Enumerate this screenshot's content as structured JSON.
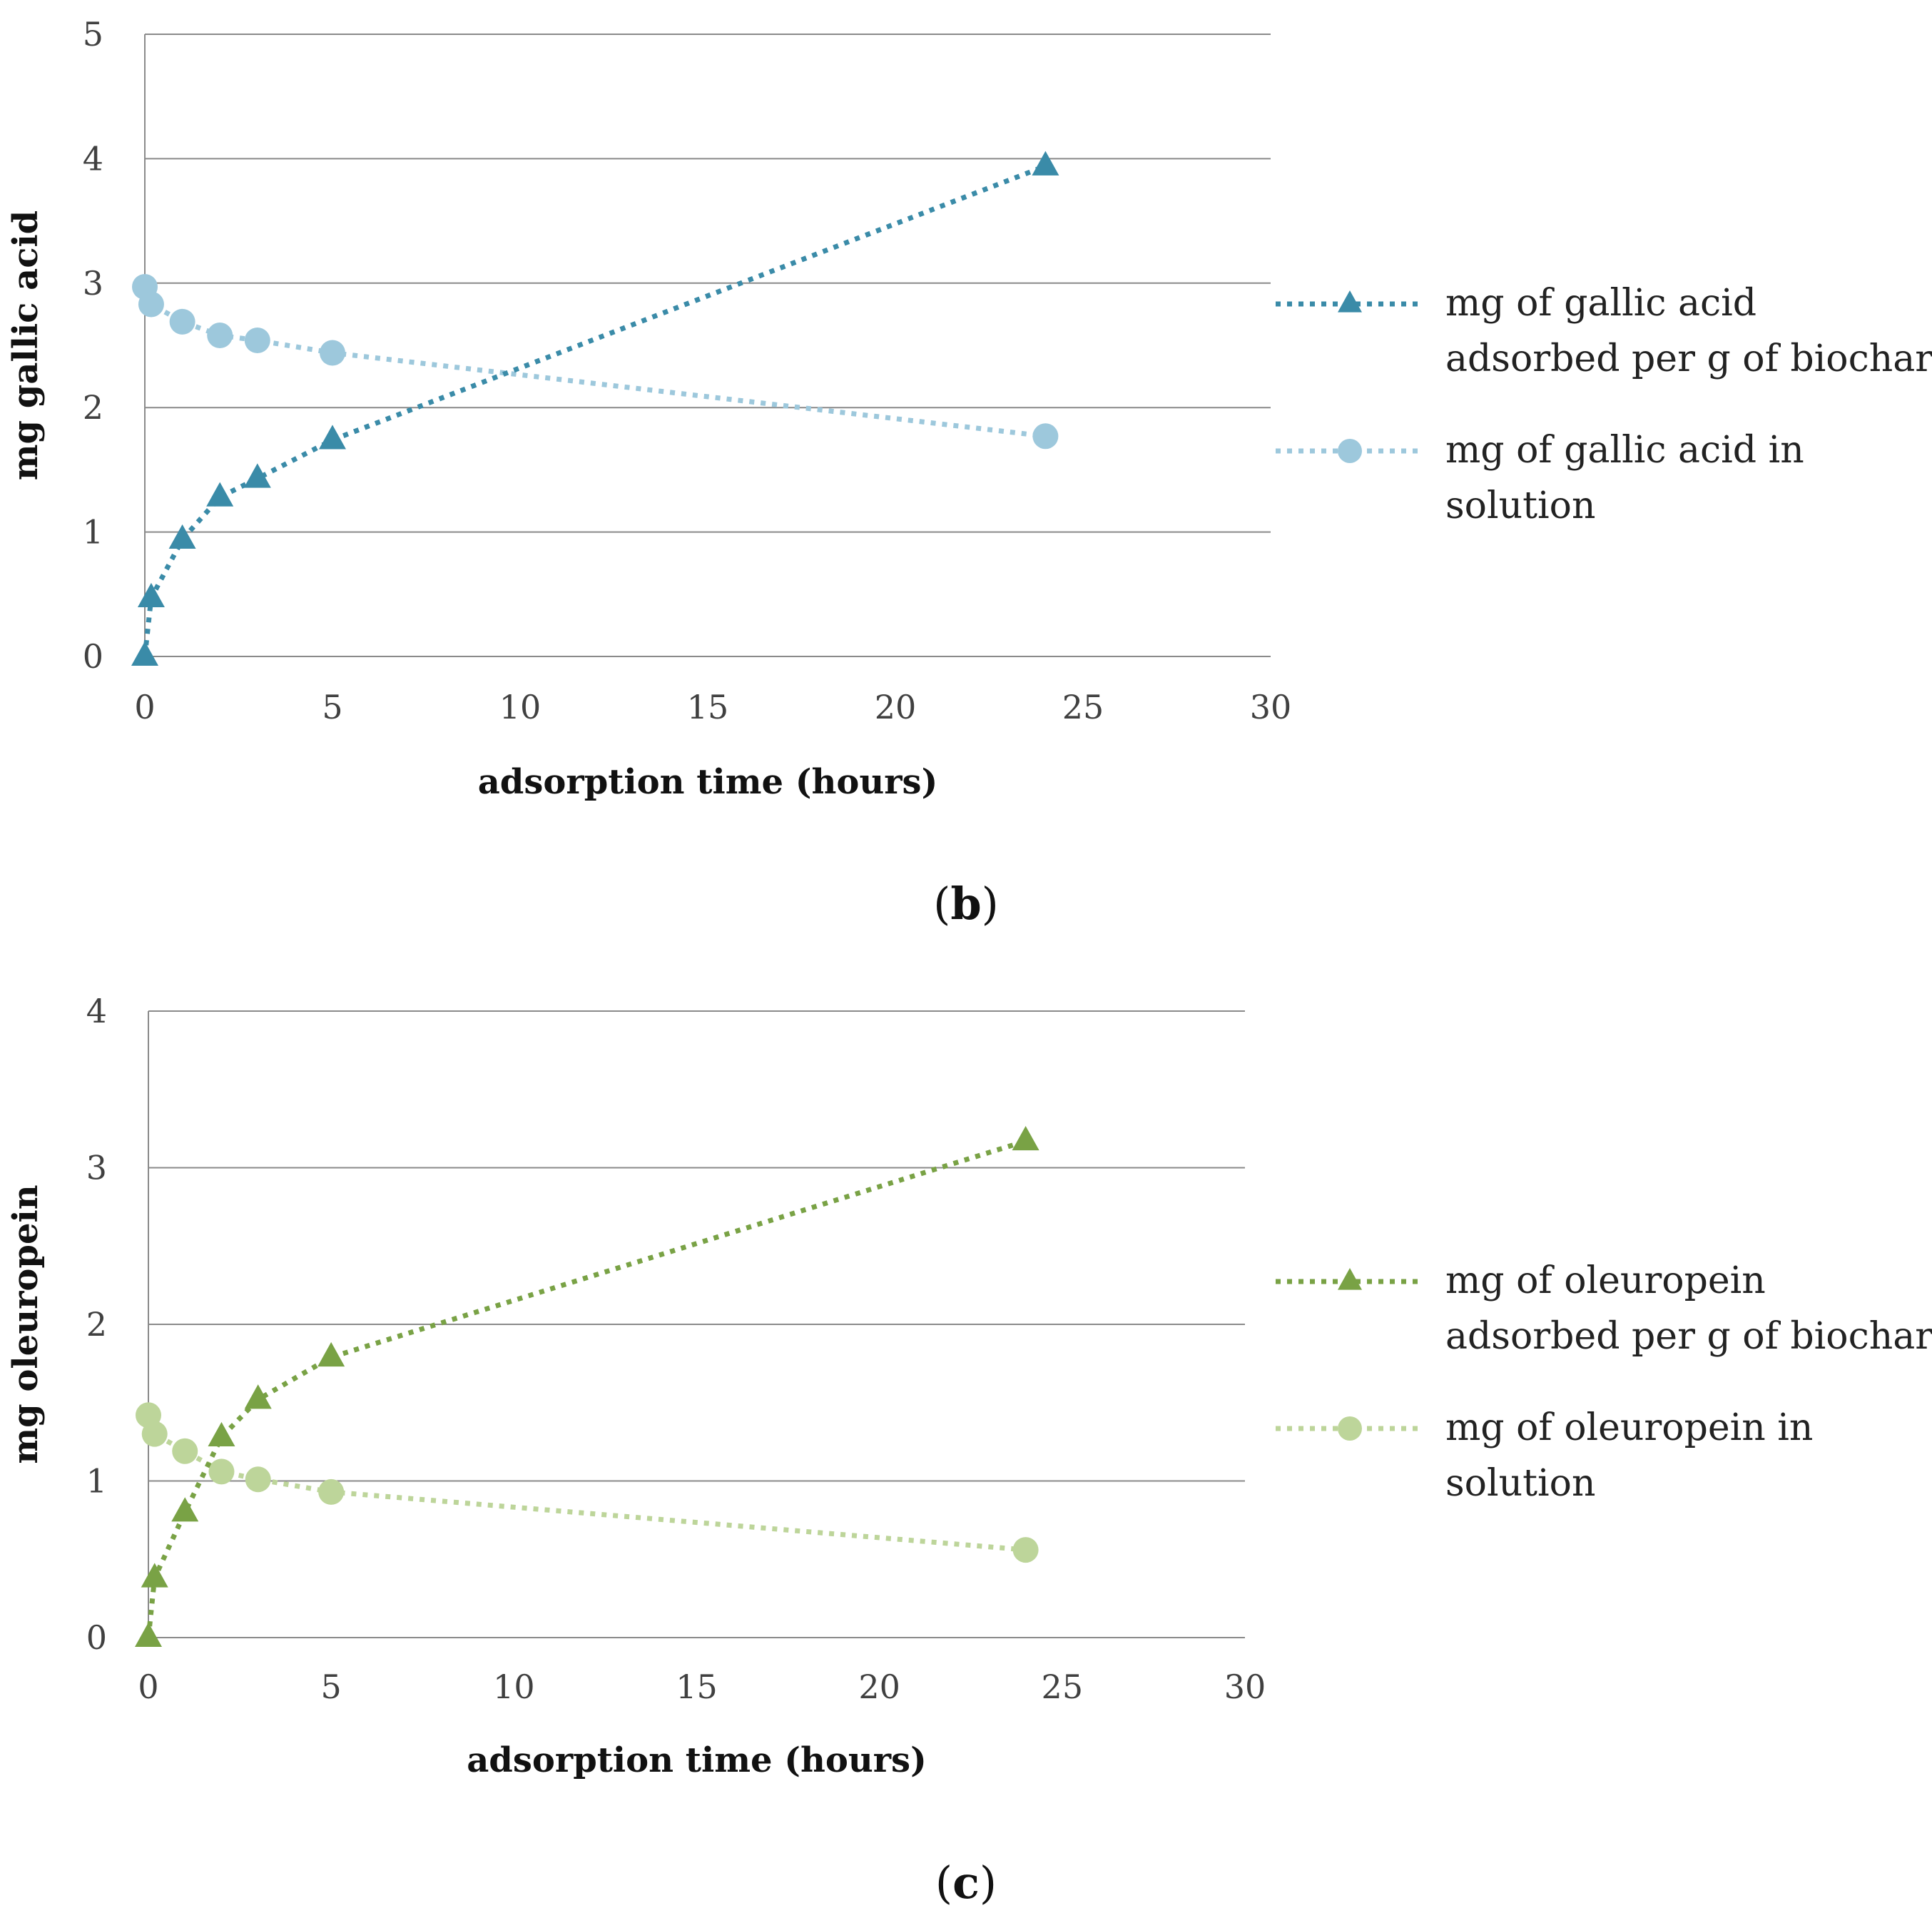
{
  "chart_data": [
    {
      "type": "line",
      "panel_label": "b",
      "xlabel": "adsorption time (hours)",
      "ylabel": "mg gallic acid",
      "xlim": [
        0,
        30
      ],
      "ylim": [
        0,
        5
      ],
      "xticks": [
        0,
        5,
        10,
        15,
        20,
        25,
        30
      ],
      "yticks": [
        0,
        1,
        2,
        3,
        4,
        5
      ],
      "grid": "horizontal",
      "legend_position": "right",
      "series": [
        {
          "name_line1": "mg of gallic acid",
          "name_line2": "adsorbed per g of biochar",
          "marker": "triangle",
          "color": "#3a8ba8",
          "x": [
            0,
            0.17,
            1,
            2,
            3,
            5,
            24
          ],
          "y": [
            0,
            0.47,
            0.94,
            1.28,
            1.43,
            1.74,
            3.94
          ]
        },
        {
          "name_line1": "mg of gallic acid in",
          "name_line2": "solution",
          "marker": "circle",
          "color": "#9dc8dc",
          "x": [
            0,
            0.17,
            1,
            2,
            3,
            5,
            24
          ],
          "y": [
            2.97,
            2.83,
            2.69,
            2.58,
            2.54,
            2.44,
            1.77
          ]
        }
      ]
    },
    {
      "type": "line",
      "panel_label": "c",
      "xlabel": "adsorption time (hours)",
      "ylabel": "mg oleuropein",
      "xlim": [
        0,
        30
      ],
      "ylim": [
        0,
        4
      ],
      "xticks": [
        0,
        5,
        10,
        15,
        20,
        25,
        30
      ],
      "yticks": [
        0,
        1,
        2,
        3,
        4
      ],
      "grid": "horizontal",
      "legend_position": "right",
      "series": [
        {
          "name_line1": "mg of oleuropein",
          "name_line2": "adsorbed per g of biochar",
          "marker": "triangle",
          "color": "#79a245",
          "x": [
            0,
            0.17,
            1,
            2,
            3,
            5,
            24
          ],
          "y": [
            0,
            0.38,
            0.8,
            1.28,
            1.52,
            1.79,
            3.17
          ]
        },
        {
          "name_line1": "mg of oleuropein in",
          "name_line2": "solution",
          "marker": "circle",
          "color": "#bdd59a",
          "x": [
            0,
            0.17,
            1,
            2,
            3,
            5,
            24
          ],
          "y": [
            1.42,
            1.3,
            1.19,
            1.06,
            1.01,
            0.93,
            0.56
          ]
        }
      ]
    }
  ]
}
